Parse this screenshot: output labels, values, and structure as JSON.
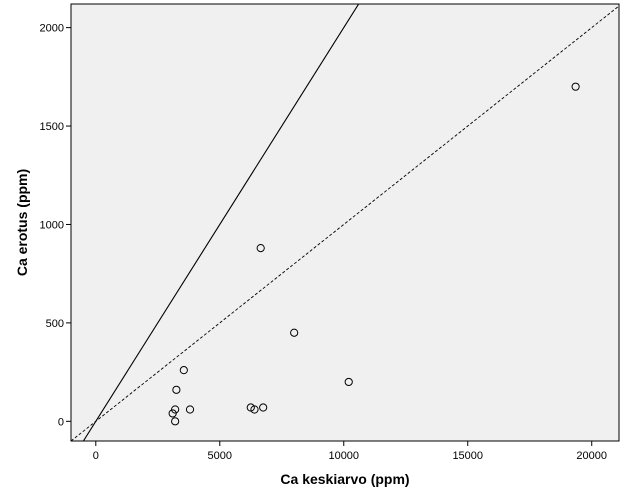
{
  "chart_data": {
    "type": "scatter",
    "title": "",
    "xlabel": "Ca keskiarvo (ppm)",
    "ylabel": "Ca erotus (ppm)",
    "xlim": [
      -1000,
      21100
    ],
    "ylim": [
      -100,
      2120
    ],
    "xticks": [
      0,
      5000,
      10000,
      15000,
      20000
    ],
    "yticks": [
      0,
      500,
      1000,
      1500,
      2000
    ],
    "x_tick_labels": [
      "0",
      "5000",
      "10000",
      "15000",
      "20000"
    ],
    "y_tick_labels": [
      "0",
      "500",
      "1000",
      "1500",
      "2000"
    ],
    "grid": false,
    "background_color": "#f0f0f0",
    "point_style": "open-circle",
    "series": [
      {
        "points": [
          {
            "x": 3100,
            "y": 40
          },
          {
            "x": 3200,
            "y": 60
          },
          {
            "x": 3200,
            "y": 0
          },
          {
            "x": 3250,
            "y": 160
          },
          {
            "x": 3550,
            "y": 260
          },
          {
            "x": 3800,
            "y": 60
          },
          {
            "x": 6250,
            "y": 70
          },
          {
            "x": 6400,
            "y": 60
          },
          {
            "x": 6650,
            "y": 880
          },
          {
            "x": 6750,
            "y": 70
          },
          {
            "x": 8000,
            "y": 450
          },
          {
            "x": 10200,
            "y": 200
          },
          {
            "x": 19350,
            "y": 1700
          }
        ]
      }
    ],
    "reference_lines": [
      {
        "style": "solid",
        "slope": 0.2,
        "intercept": 0
      },
      {
        "style": "dashed",
        "slope": 0.1,
        "intercept": 0
      }
    ]
  }
}
